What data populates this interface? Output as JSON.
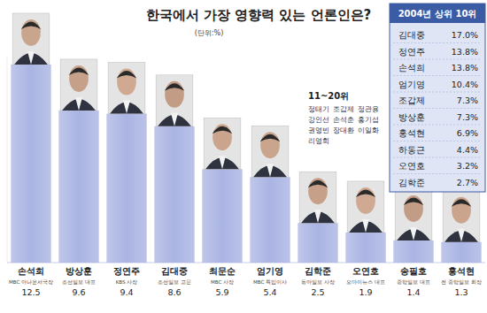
{
  "chart_data": {
    "type": "bar",
    "title": "한국에서 가장 영향력 있는 언론인은?",
    "subtitle": "(단위:%)",
    "categories": [
      "손석희",
      "방상훈",
      "정연주",
      "김대중",
      "최문순",
      "엄기영",
      "김학준",
      "오연호",
      "송필호",
      "홍석현"
    ],
    "affiliations": [
      "MBC 아나운서국장",
      "조선일보 대표",
      "KBS 사장",
      "조선일보 고문",
      "MBC 사장",
      "MBC 특임이사",
      "동아일보 사장",
      "오마이뉴스 대표",
      "중앙일보 대표",
      "전 중앙일보 회장"
    ],
    "values": [
      12.5,
      9.6,
      9.4,
      8.6,
      5.9,
      5.4,
      2.5,
      1.9,
      1.4,
      1.3
    ],
    "color": "#aab4e3",
    "ylim": [
      0,
      13
    ],
    "data_labels": true,
    "tick_labels": false,
    "grid": false,
    "annotation_title": "11~20위",
    "annotation_names": [
      "정태기",
      "조갑제",
      "정관용",
      "강인선",
      "손석춘",
      "홍기섭",
      "권영빈",
      "장대환",
      "이일화",
      "리영희"
    ]
  },
  "table": {
    "title": "2004년 상위 10위",
    "rows": [
      [
        "김대중",
        "17.0%"
      ],
      [
        "정연주",
        "13.8%"
      ],
      [
        "손석희",
        "13.8%"
      ],
      [
        "엄기영",
        "10.4%"
      ],
      [
        "조갑제",
        "7.3%"
      ],
      [
        "방상훈",
        "7.3%"
      ],
      [
        "홍석현",
        "6.9%"
      ],
      [
        "하동근",
        "4.4%"
      ],
      [
        "오연호",
        "3.2%"
      ],
      [
        "김학준",
        "2.7%"
      ]
    ]
  }
}
